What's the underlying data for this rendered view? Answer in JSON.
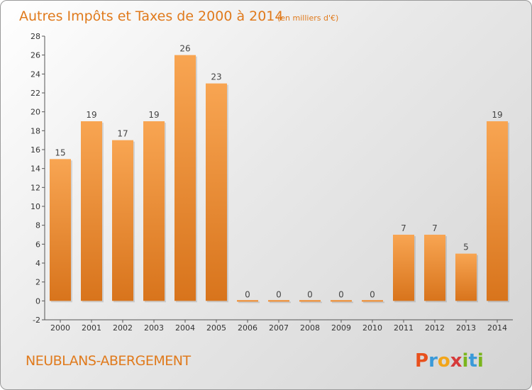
{
  "chart_data": {
    "type": "bar",
    "title": "Autres Impôts et Taxes de 2000 à 2014",
    "subtitle": "(en milliers d'€)",
    "categories": [
      "2000",
      "2001",
      "2002",
      "2003",
      "2004",
      "2005",
      "2006",
      "2007",
      "2008",
      "2009",
      "2010",
      "2011",
      "2012",
      "2013",
      "2014"
    ],
    "values": [
      15,
      19,
      17,
      19,
      26,
      23,
      0,
      0,
      0,
      0,
      0,
      7,
      7,
      5,
      19
    ],
    "ylim": [
      -2,
      28
    ],
    "yticks": [
      -2,
      0,
      2,
      4,
      6,
      8,
      10,
      12,
      14,
      16,
      18,
      20,
      22,
      24,
      26,
      28
    ],
    "grid": false,
    "bar_color": "#f0892a"
  },
  "commune": "NEUBLANS-ABERGEMENT",
  "logo": {
    "letters": [
      "P",
      "r",
      "o",
      "x",
      "i",
      "t",
      "i"
    ],
    "colors": [
      "#e8501c",
      "#3a9ad9",
      "#f2a51a",
      "#d63a3a",
      "#7ab51d",
      "#3a9ad9",
      "#7ab51d"
    ]
  }
}
